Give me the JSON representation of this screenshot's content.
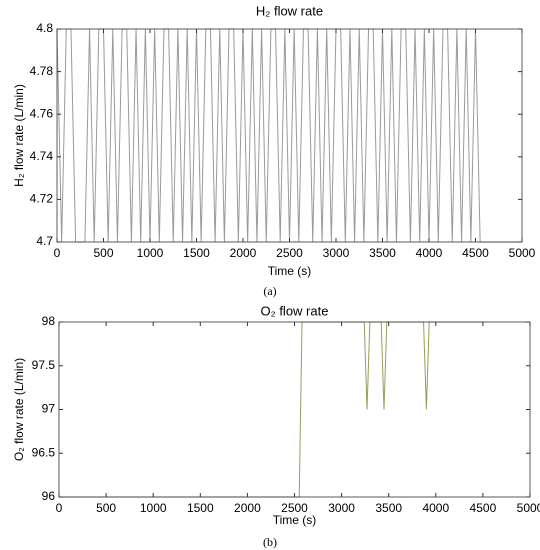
{
  "chart_data": [
    {
      "type": "line",
      "title": "H₂ flow rate",
      "xlabel": "Time (s)",
      "ylabel": "H₂ flow rate (L/min)",
      "caption": "(a)",
      "xlim": [
        0,
        5000
      ],
      "xticks": [
        0,
        500,
        1000,
        1500,
        2000,
        2500,
        3000,
        3500,
        4000,
        4500,
        5000
      ],
      "ylim": [
        4.7,
        4.8
      ],
      "yticks": [
        4.7,
        4.72,
        4.74,
        4.76,
        4.78,
        4.8
      ],
      "series": [
        {
          "color": "#9a9a9a",
          "x": [
            0,
            50,
            100,
            150,
            200,
            250,
            300,
            350,
            400,
            450,
            500,
            550,
            600,
            650,
            700,
            750,
            800,
            850,
            900,
            950,
            1000,
            1050,
            1100,
            1150,
            1200,
            1250,
            1300,
            1350,
            1400,
            1450,
            1500,
            1550,
            1600,
            1650,
            1700,
            1750,
            1800,
            1850,
            1900,
            1950,
            2000,
            2050,
            2100,
            2150,
            2200,
            2250,
            2300,
            2350,
            2400,
            2450,
            2500,
            2550,
            2600,
            2650,
            2700,
            2750,
            2800,
            2850,
            2900,
            2950,
            3000,
            3050,
            3100,
            3150,
            3200,
            3250,
            3300,
            3350,
            3400,
            3450,
            3500,
            3550,
            3600,
            3650,
            3700,
            3750,
            3800,
            3850,
            3900,
            3950,
            4000,
            4050,
            4100,
            4150,
            4200,
            4250,
            4300,
            4350,
            4400,
            4450,
            4500,
            4550,
            4600,
            4650,
            4700,
            4750,
            4800,
            4850,
            4900,
            4950,
            5000
          ],
          "values": [
            4.8,
            4.7,
            4.8,
            4.8,
            4.7,
            4.7,
            4.7,
            4.8,
            4.7,
            4.8,
            4.8,
            4.7,
            4.8,
            4.7,
            4.8,
            4.8,
            4.7,
            4.8,
            4.7,
            4.8,
            4.7,
            4.8,
            4.7,
            4.8,
            4.8,
            4.7,
            4.8,
            4.7,
            4.8,
            4.7,
            4.8,
            4.7,
            4.8,
            4.8,
            4.7,
            4.8,
            4.7,
            4.8,
            4.8,
            4.7,
            4.8,
            4.7,
            4.8,
            4.7,
            4.8,
            4.7,
            4.8,
            4.8,
            4.7,
            4.8,
            4.7,
            4.8,
            4.7,
            4.8,
            4.8,
            4.7,
            4.8,
            4.7,
            4.8,
            4.7,
            4.8,
            4.8,
            4.7,
            4.8,
            4.7,
            4.8,
            4.7,
            4.8,
            4.8,
            4.7,
            4.8,
            4.7,
            4.8,
            4.7,
            4.8,
            4.8,
            4.7,
            4.8,
            4.7,
            4.8,
            4.7,
            4.8,
            4.7,
            4.8,
            4.8,
            4.7,
            4.8,
            4.7,
            4.8,
            4.7,
            4.8,
            4.7,
            4.7,
            4.7,
            4.7,
            4.7,
            4.7,
            4.7,
            4.7,
            4.7,
            4.7
          ]
        }
      ]
    },
    {
      "type": "line",
      "title": "O₂ flow rate",
      "xlabel": "Time (s)",
      "ylabel": "O₂ flow rate (L/min)",
      "caption": "(b)",
      "xlim": [
        0,
        5000
      ],
      "xticks": [
        0,
        500,
        1000,
        1500,
        2000,
        2500,
        3000,
        3500,
        4000,
        4500,
        5000
      ],
      "ylim": [
        96,
        98
      ],
      "yticks": [
        96,
        96.5,
        97,
        97.5,
        98
      ],
      "series": [
        {
          "color": "#9c9a5c",
          "x": [
            0,
            2550,
            2580,
            3240,
            3270,
            3300,
            3420,
            3450,
            3480,
            3870,
            3900,
            3930,
            4500
          ],
          "values": [
            96,
            96,
            98,
            98,
            97,
            98,
            98,
            97,
            98,
            98,
            97,
            98,
            98
          ]
        }
      ]
    }
  ]
}
